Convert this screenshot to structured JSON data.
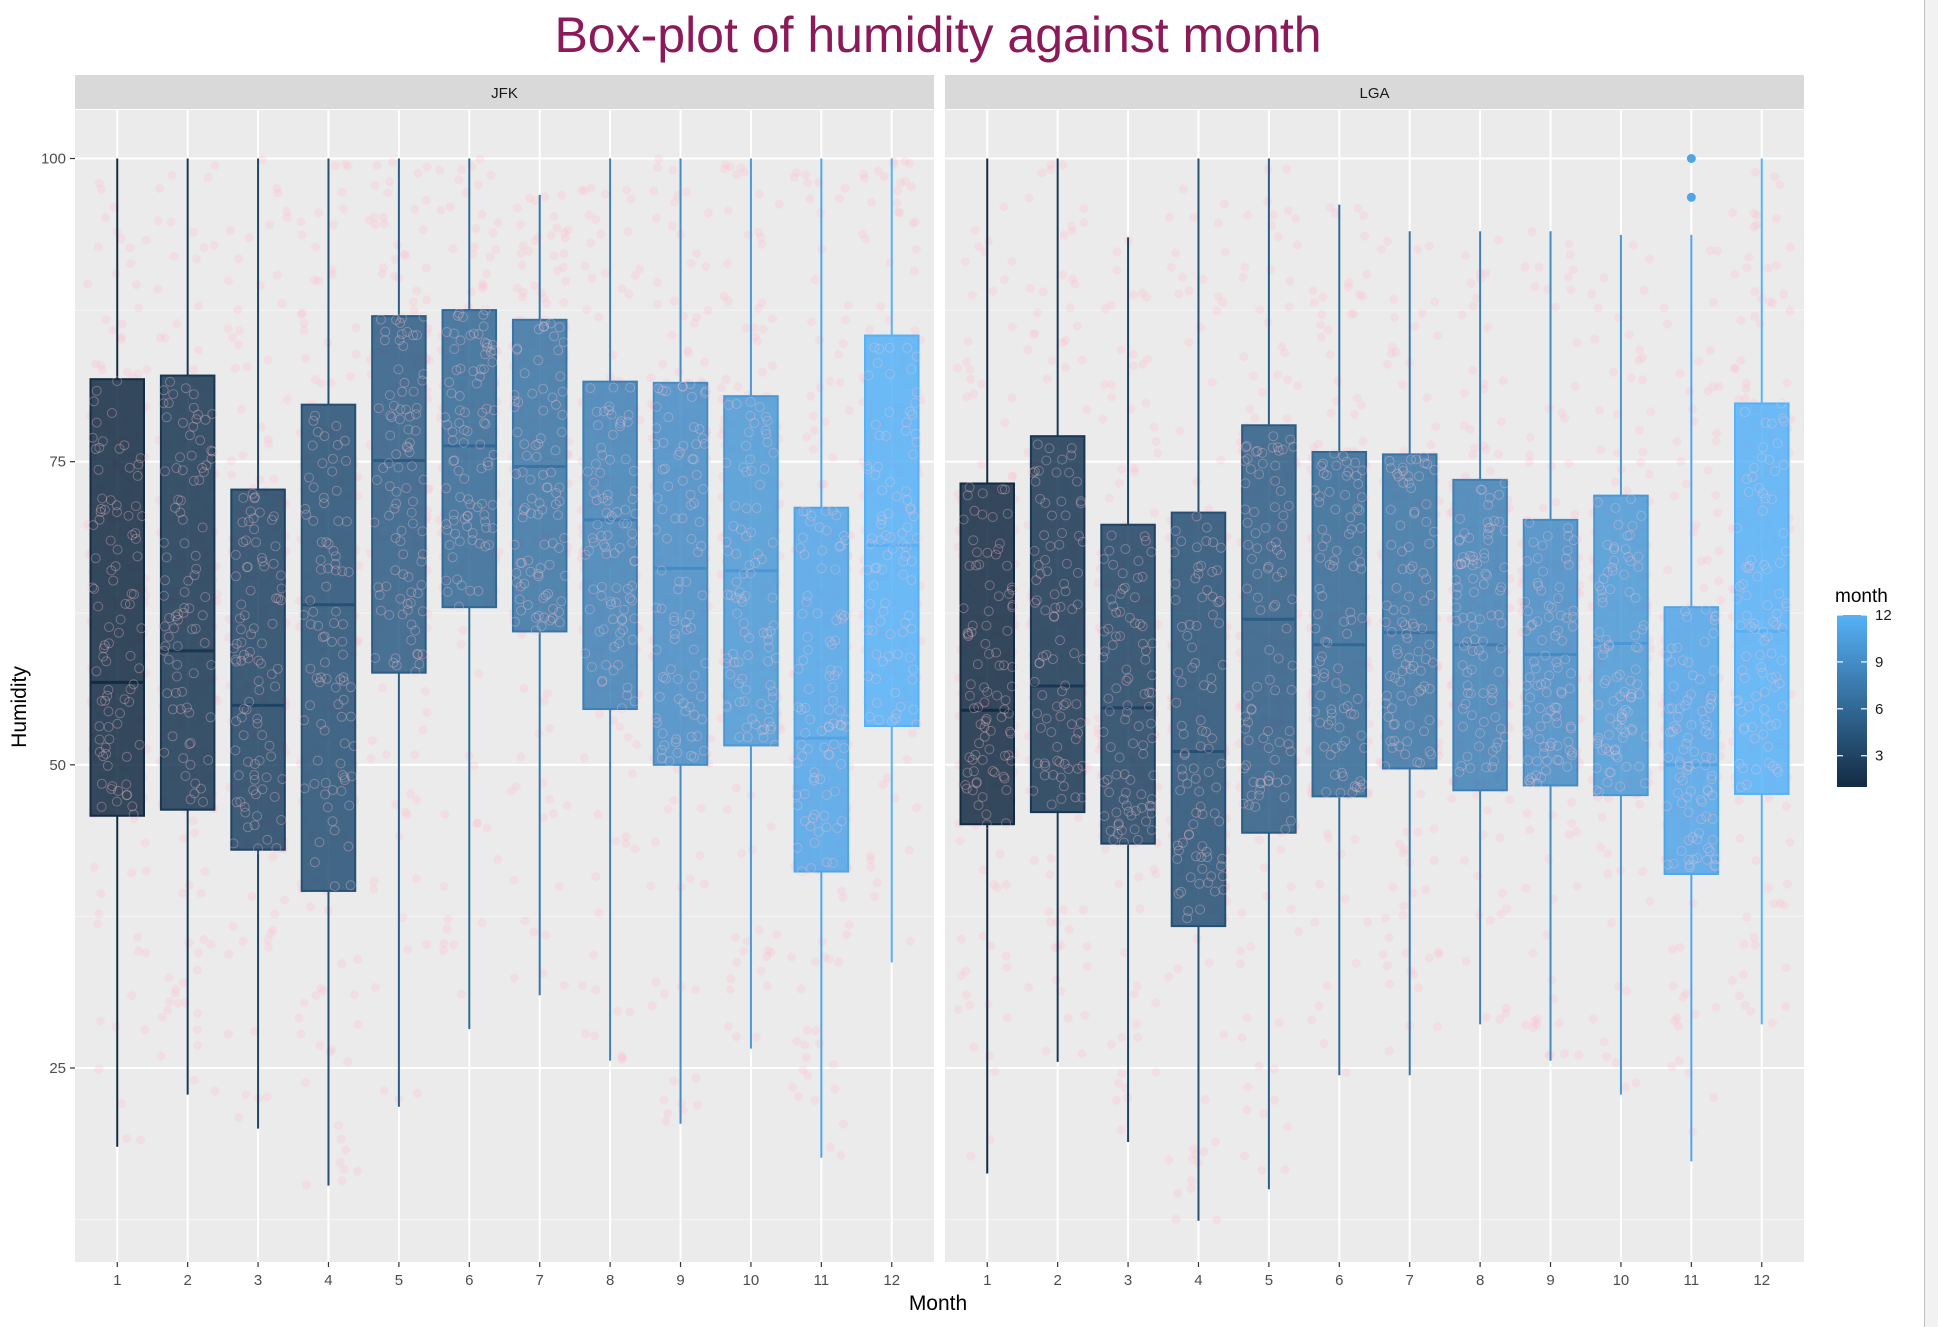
{
  "chart_data": {
    "type": "boxplot",
    "title": "Box-plot of humidity against month",
    "xlabel": "Month",
    "ylabel": "Humidity",
    "ylim": [
      9,
      104
    ],
    "y_ticks": [
      25,
      50,
      75,
      100
    ],
    "categories": [
      "1",
      "2",
      "3",
      "4",
      "5",
      "6",
      "7",
      "8",
      "9",
      "10",
      "11",
      "12"
    ],
    "grid": true,
    "point_color": "#ffc0cb",
    "color_scale": {
      "title": "month",
      "low": "#132b43",
      "high": "#56b1f7",
      "min": 1,
      "max": 12,
      "ticks": [
        "3",
        "6",
        "9",
        "12"
      ]
    },
    "panels": [
      {
        "name": "JFK",
        "boxes": [
          {
            "month": 1,
            "lower": 18.5,
            "q1": 45.8,
            "median": 56.8,
            "q3": 81.8,
            "upper": 100
          },
          {
            "month": 2,
            "lower": 22.8,
            "q1": 46.3,
            "median": 59.4,
            "q3": 82.1,
            "upper": 100
          },
          {
            "month": 3,
            "lower": 20.0,
            "q1": 43.0,
            "median": 54.9,
            "q3": 72.7,
            "upper": 100
          },
          {
            "month": 4,
            "lower": 15.3,
            "q1": 39.6,
            "median": 63.2,
            "q3": 79.7,
            "upper": 100
          },
          {
            "month": 5,
            "lower": 21.8,
            "q1": 57.6,
            "median": 75.1,
            "q3": 87.0,
            "upper": 100
          },
          {
            "month": 6,
            "lower": 28.2,
            "q1": 63.0,
            "median": 76.3,
            "q3": 87.5,
            "upper": 100
          },
          {
            "month": 7,
            "lower": 31.0,
            "q1": 61.0,
            "median": 74.6,
            "q3": 86.7,
            "upper": 97.0
          },
          {
            "month": 8,
            "lower": 25.6,
            "q1": 54.6,
            "median": 70.2,
            "q3": 81.6,
            "upper": 100
          },
          {
            "month": 9,
            "lower": 20.4,
            "q1": 50.0,
            "median": 66.2,
            "q3": 81.5,
            "upper": 100
          },
          {
            "month": 10,
            "lower": 26.6,
            "q1": 51.6,
            "median": 66.0,
            "q3": 80.4,
            "upper": 100
          },
          {
            "month": 11,
            "lower": 17.6,
            "q1": 41.2,
            "median": 52.2,
            "q3": 71.2,
            "upper": 100
          },
          {
            "month": 12,
            "lower": 33.7,
            "q1": 53.2,
            "median": 68.1,
            "q3": 85.4,
            "upper": 100
          }
        ],
        "outliers": []
      },
      {
        "name": "LGA",
        "boxes": [
          {
            "month": 1,
            "lower": 16.3,
            "q1": 45.1,
            "median": 54.5,
            "q3": 73.2,
            "upper": 100
          },
          {
            "month": 2,
            "lower": 25.5,
            "q1": 46.1,
            "median": 56.5,
            "q3": 77.1,
            "upper": 100
          },
          {
            "month": 3,
            "lower": 18.9,
            "q1": 43.5,
            "median": 54.7,
            "q3": 69.8,
            "upper": 93.5
          },
          {
            "month": 4,
            "lower": 12.4,
            "q1": 36.7,
            "median": 51.1,
            "q3": 70.8,
            "upper": 100
          },
          {
            "month": 5,
            "lower": 15.0,
            "q1": 44.4,
            "median": 62.0,
            "q3": 78.0,
            "upper": 100
          },
          {
            "month": 6,
            "lower": 24.4,
            "q1": 47.4,
            "median": 59.9,
            "q3": 75.8,
            "upper": 96.2
          },
          {
            "month": 7,
            "lower": 24.4,
            "q1": 49.7,
            "median": 60.9,
            "q3": 75.6,
            "upper": 94.0
          },
          {
            "month": 8,
            "lower": 28.6,
            "q1": 47.9,
            "median": 59.9,
            "q3": 73.5,
            "upper": 94.0
          },
          {
            "month": 9,
            "lower": 25.6,
            "q1": 48.3,
            "median": 59.1,
            "q3": 70.2,
            "upper": 94.0
          },
          {
            "month": 10,
            "lower": 22.8,
            "q1": 47.5,
            "median": 60.0,
            "q3": 72.2,
            "upper": 93.7
          },
          {
            "month": 11,
            "lower": 17.3,
            "q1": 41.0,
            "median": 50.0,
            "q3": 63.0,
            "upper": 93.7
          },
          {
            "month": 12,
            "lower": 28.6,
            "q1": 47.6,
            "median": 61.0,
            "q3": 79.8,
            "upper": 100
          }
        ],
        "outliers": [
          {
            "month": 11,
            "value": 100
          },
          {
            "month": 11,
            "value": 96.8
          }
        ]
      }
    ]
  }
}
